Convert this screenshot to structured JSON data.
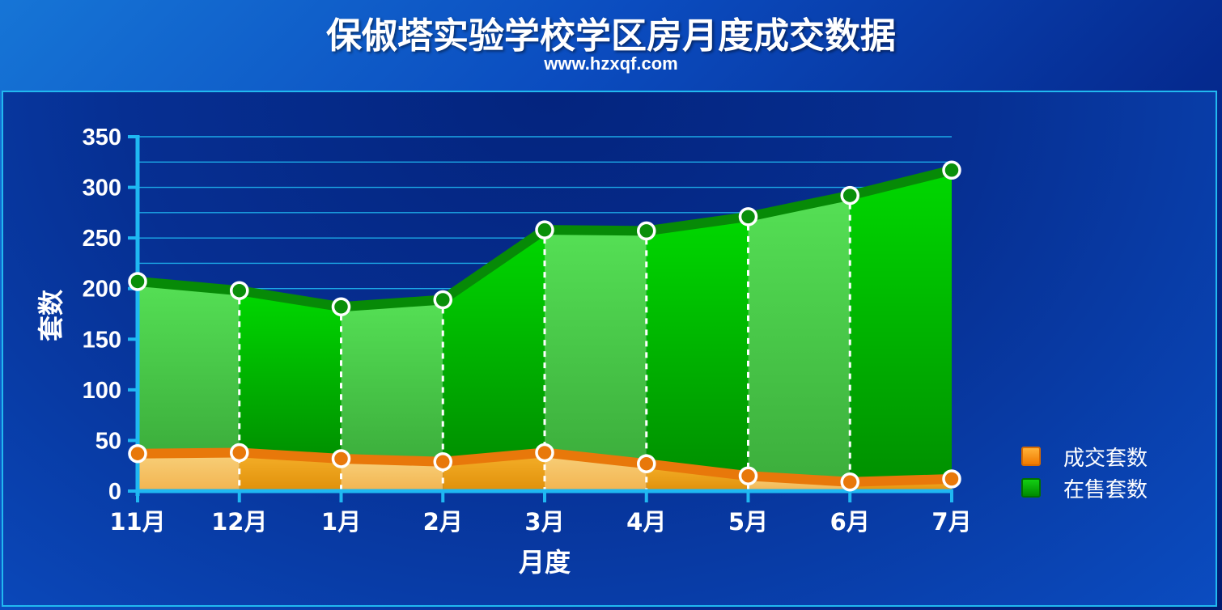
{
  "header": {
    "title": "保俶塔实验学校学区房月度成交数据",
    "subtitle": "www.hzxqf.com"
  },
  "chart_data": {
    "type": "area",
    "title": "保俶塔实验学校学区房月度成交数据",
    "subtitle": "www.hzxqf.com",
    "xlabel": "月度",
    "ylabel": "套数",
    "categories": [
      "11月",
      "12月",
      "1月",
      "2月",
      "3月",
      "4月",
      "5月",
      "6月",
      "7月"
    ],
    "yticks": [
      "0",
      "50",
      "100",
      "150",
      "200",
      "250",
      "300",
      "350"
    ],
    "ylim": [
      0,
      350
    ],
    "grid": true,
    "legend_position": "right",
    "series": [
      {
        "name": "在售套数",
        "values": [
          207,
          198,
          182,
          189,
          258,
          257,
          271,
          292,
          317
        ],
        "color": "#0fbf0f"
      },
      {
        "name": "成交套数",
        "values": [
          37,
          38,
          32,
          29,
          38,
          27,
          15,
          9,
          12
        ],
        "color": "#f28c0a"
      }
    ]
  },
  "colors": {
    "background": "#0b4cbf",
    "panel_border": "#21b9f0",
    "axis": "#1fb8f2",
    "on_sale": "#0fbf0f",
    "sold": "#f28c0a"
  }
}
